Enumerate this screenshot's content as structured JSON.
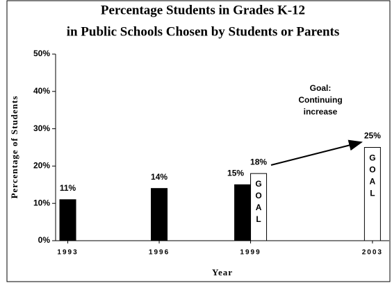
{
  "chart_data": {
    "type": "bar",
    "title": [
      "Percentage Students in Grades K-12",
      "in Public Schools Chosen by Students or Parents"
    ],
    "x_label": "Year",
    "y_label": "Percentage of Students",
    "x": [
      1993,
      1996,
      1999,
      2003
    ],
    "xlim": [
      1992.6,
      2003.55
    ],
    "xticks": [
      1993,
      1996,
      1999,
      2003
    ],
    "ylim": [
      0,
      50
    ],
    "yticks": [
      {
        "value": 0,
        "label": "0%"
      },
      {
        "value": 10,
        "label": "10%"
      },
      {
        "value": 20,
        "label": "20%"
      },
      {
        "value": 30,
        "label": "30%"
      },
      {
        "value": 40,
        "label": "40%"
      },
      {
        "value": 50,
        "label": "50%"
      }
    ],
    "series": [
      {
        "color": "#000000",
        "values": [
          11,
          14,
          15,
          null
        ],
        "value_labels": [
          "11%",
          "14%",
          "15%",
          null
        ]
      },
      {
        "color": "#ffffff",
        "values": [
          null,
          null,
          18,
          25
        ],
        "value_labels": [
          null,
          null,
          "18%",
          "25%"
        ],
        "bar_text": "GOAL"
      }
    ],
    "annotation": [
      "Goal:",
      "Continuing",
      "increase"
    ]
  }
}
